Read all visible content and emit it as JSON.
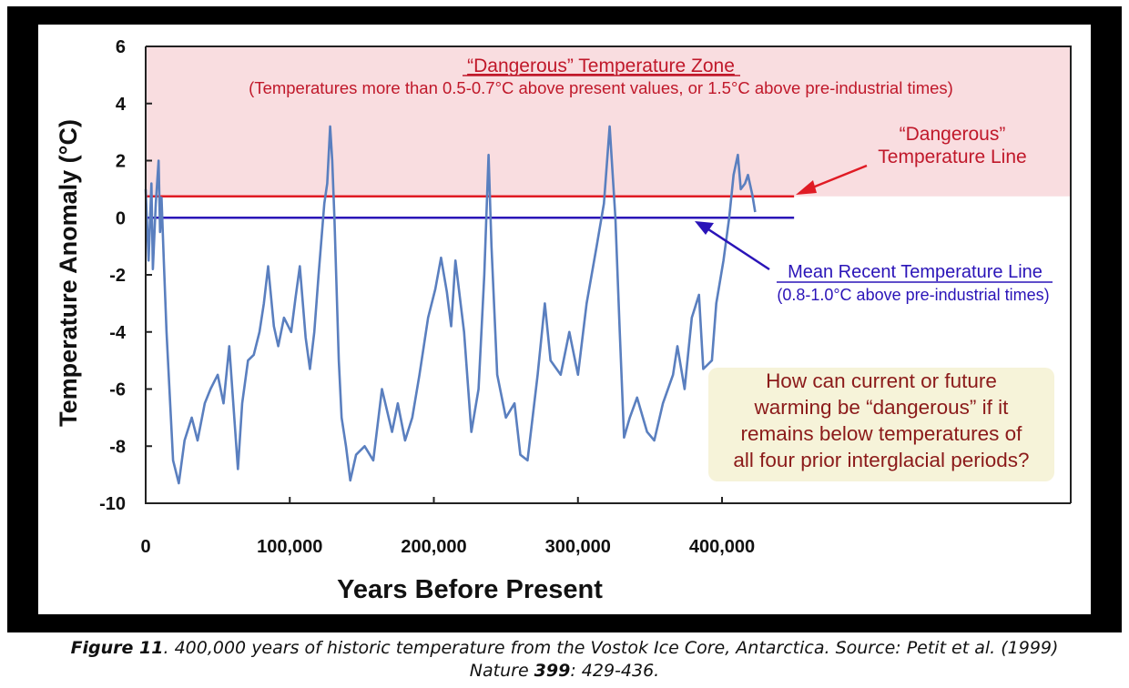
{
  "chart_data": {
    "type": "line",
    "title": "",
    "xlabel": "Years Before Present",
    "ylabel": "Temperature Anomaly (°C)",
    "xlim": [
      0,
      642000
    ],
    "ylim": [
      -10,
      6
    ],
    "x_ticks": [
      0,
      100000,
      200000,
      300000,
      400000
    ],
    "x_tick_labels": [
      "0",
      "100,000",
      "200,000",
      "300,000",
      "400,000"
    ],
    "y_ticks": [
      6,
      4,
      2,
      0,
      -2,
      -4,
      -6,
      -8,
      -10
    ],
    "y_tick_labels": [
      "6",
      "4",
      "2",
      "0",
      "-2",
      "-4",
      "-6",
      "-8",
      "-10"
    ],
    "grid": false,
    "series": [
      {
        "name": "Vostok temperature",
        "color": "#5a7fbf",
        "x": [
          0,
          2000,
          4000,
          5000,
          7000,
          9000,
          10000,
          11000,
          12600,
          14500,
          19000,
          23000,
          27000,
          32000,
          36000,
          41000,
          45000,
          50000,
          54000,
          58000,
          64000,
          67000,
          71000,
          75000,
          79000,
          82000,
          85000,
          89000,
          92000,
          96000,
          101000,
          104000,
          107000,
          111000,
          114000,
          117000,
          120000,
          124000,
          126000,
          128000,
          129500,
          131000,
          134000,
          136000,
          139000,
          142000,
          146000,
          152000,
          158000,
          164000,
          171000,
          175000,
          180000,
          185000,
          190000,
          196000,
          201000,
          205000,
          209000,
          212000,
          215000,
          221000,
          226000,
          231000,
          235000,
          238000,
          240000,
          244000,
          250000,
          256000,
          260000,
          265000,
          272000,
          277000,
          281000,
          288000,
          294000,
          300000,
          306000,
          313000,
          318000,
          322000,
          326000,
          329000,
          332000,
          336000,
          341000,
          348000,
          353000,
          359000,
          366000,
          369000,
          374000,
          379000,
          384000,
          387000,
          393000,
          396000,
          401000,
          405000,
          408000,
          411000,
          413000,
          416000,
          418000,
          421000,
          423000
        ],
        "y": [
          1.0,
          -1.5,
          1.2,
          -1.8,
          0.5,
          2.0,
          -0.5,
          0.7,
          -1.5,
          -4.0,
          -8.5,
          -9.3,
          -7.8,
          -7.0,
          -7.8,
          -6.5,
          -6.0,
          -5.5,
          -6.5,
          -4.5,
          -8.8,
          -6.5,
          -5.0,
          -4.8,
          -4.0,
          -3.0,
          -1.7,
          -3.8,
          -4.5,
          -3.5,
          -4.0,
          -2.8,
          -1.7,
          -4.2,
          -5.3,
          -4.0,
          -2.0,
          0.5,
          1.2,
          3.2,
          2.0,
          0.0,
          -5.0,
          -7.0,
          -8.0,
          -9.2,
          -8.3,
          -8.0,
          -8.5,
          -6.0,
          -7.5,
          -6.5,
          -7.8,
          -7.0,
          -5.5,
          -3.5,
          -2.5,
          -1.4,
          -2.6,
          -3.8,
          -1.5,
          -4.0,
          -7.5,
          -6.0,
          -2.0,
          2.2,
          -1.0,
          -5.5,
          -7.0,
          -6.5,
          -8.3,
          -8.5,
          -5.5,
          -3.0,
          -5.0,
          -5.5,
          -4.0,
          -5.5,
          -3.0,
          -1.0,
          0.5,
          3.2,
          0.0,
          -4.0,
          -7.7,
          -7.0,
          -6.3,
          -7.5,
          -7.8,
          -6.5,
          -5.5,
          -4.5,
          -6.0,
          -3.5,
          -2.7,
          -5.3,
          -5.0,
          -3.0,
          -1.5,
          0.0,
          1.5,
          2.2,
          1.0,
          1.2,
          1.5,
          0.8,
          0.2
        ]
      }
    ],
    "reference_lines": [
      {
        "name": "“Dangerous” Temperature Line",
        "y": 0.75,
        "x_end": 450000,
        "color": "#e01b24"
      },
      {
        "name": "Mean Recent Temperature Line",
        "y": 0,
        "x_end": 450000,
        "color": "#2a14b8"
      }
    ],
    "shaded_zone": {
      "y_from": 0.75,
      "y_to": 6,
      "color": "#f9dde0"
    },
    "annotations": {
      "zone_title": "“Dangerous” Temperature Zone",
      "zone_subtitle": "(Temperatures more than 0.5-0.7°C above present values, or 1.5°C above pre-industrial times)",
      "danger_line_1": "“Dangerous”",
      "danger_line_2": "Temperature Line",
      "mean_line_title": "Mean Recent Temperature Line",
      "mean_line_subtitle": "(0.8-1.0°C above pre-industrial times)",
      "question": [
        "How can current or future",
        "warming be “dangerous” if it",
        "remains below temperatures of",
        "all four prior interglacial periods?"
      ]
    },
    "colors": {
      "zone_text": "#c0182a",
      "mean_text": "#2a14b8",
      "question_text": "#8b1a1a",
      "question_bg": "#f6f3d9"
    }
  },
  "caption": {
    "label": "Figure 11",
    "text_1": ". 400,000 years of historic temperature from the Vostok Ice Core, Antarctica. Source: Petit et al. (1999)",
    "text_2_pre": "Nature ",
    "volume": "399",
    "text_2_post": ": 429-436."
  }
}
